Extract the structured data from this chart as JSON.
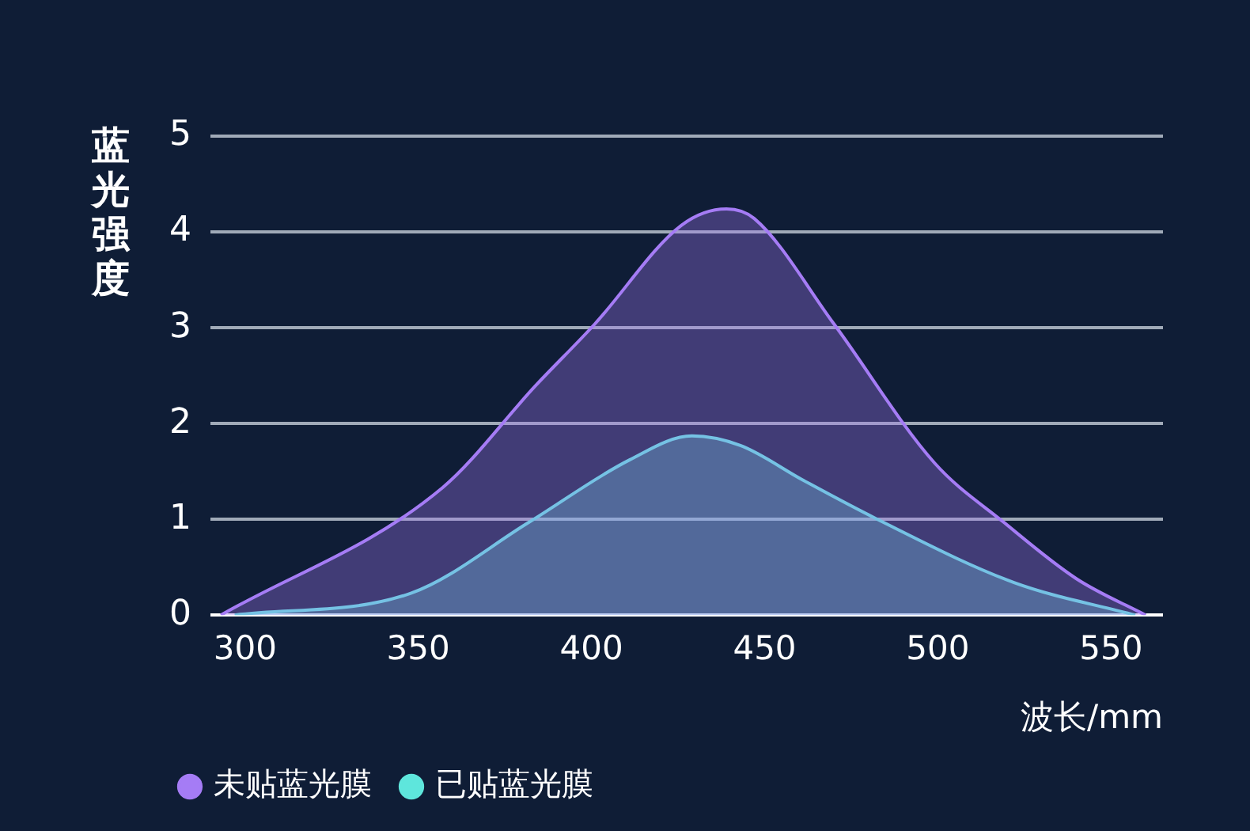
{
  "chart_data": {
    "type": "area",
    "ylabel": "蓝光强度",
    "xlabel": "波长/mm",
    "xlim": [
      290,
      565
    ],
    "xticks": [
      300,
      350,
      400,
      450,
      500,
      550
    ],
    "ylim": [
      0,
      5
    ],
    "yticks": [
      0,
      1,
      2,
      3,
      4,
      5
    ],
    "grid": "y",
    "legend": "bottom left",
    "marker": "none",
    "series": [
      {
        "name": "未贴蓝光膜",
        "color": "#a57cf5",
        "x": [
          293,
          357,
          384,
          401,
          426,
          439,
          447,
          470,
          499,
          519,
          540,
          560
        ],
        "values": [
          0,
          1.33,
          2.4,
          3.04,
          4.07,
          4.24,
          4.14,
          3.04,
          1.59,
          0.97,
          0.38,
          0
        ]
      },
      {
        "name": "已贴蓝光膜",
        "color": "#5ee6dc",
        "x": [
          297,
          348,
          382,
          411,
          429,
          443,
          461,
          482,
          522,
          557
        ],
        "values": [
          0,
          0.23,
          0.97,
          1.62,
          1.87,
          1.77,
          1.41,
          1.01,
          0.34,
          0
        ]
      }
    ]
  }
}
